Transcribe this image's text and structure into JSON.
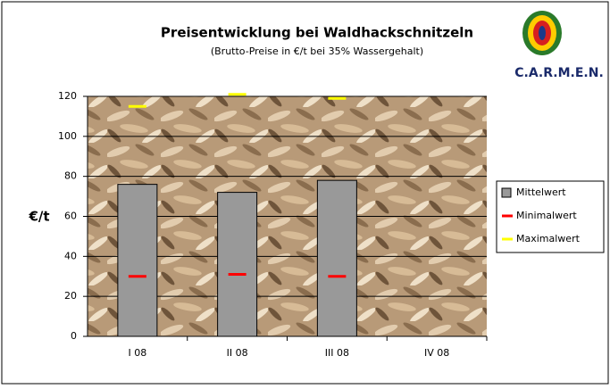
{
  "chart_data": {
    "type": "bar",
    "title": "Preisentwicklung bei Waldhackschnitzeln",
    "subtitle": "(Brutto-Preise in €/t bei 35% Wassergehalt)",
    "logo": "C.A.R.M.E.N.",
    "y_label": "€/t",
    "categories": [
      "I 08",
      "II 08",
      "III 08",
      "IV 08"
    ],
    "series": [
      {
        "name": "Mittelwert",
        "type": "bar",
        "color": "#999999",
        "values": [
          76,
          72,
          78,
          null
        ]
      },
      {
        "name": "Minimalwert",
        "type": "marker",
        "color": "#ff0000",
        "values": [
          30,
          31,
          30,
          null
        ]
      },
      {
        "name": "Maximalwert",
        "type": "marker",
        "color": "#ffff00",
        "values": [
          115,
          121,
          119,
          null
        ]
      }
    ],
    "ylim": [
      0,
      120
    ],
    "yticks": [
      0,
      20,
      40,
      60,
      80,
      100,
      120
    ],
    "grid": true,
    "legend": "right"
  }
}
